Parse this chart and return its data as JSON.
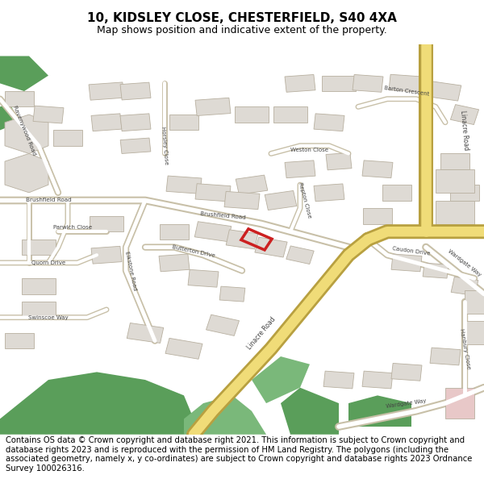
{
  "title_line1": "10, KIDSLEY CLOSE, CHESTERFIELD, S40 4XA",
  "title_line2": "Map shows position and indicative extent of the property.",
  "copyright_text": "Contains OS data © Crown copyright and database right 2021. This information is subject to Crown copyright and database rights 2023 and is reproduced with the permission of HM Land Registry. The polygons (including the associated geometry, namely x, y co-ordinates) are subject to Crown copyright and database rights 2023 Ordnance Survey 100026316.",
  "fig_width": 6.0,
  "fig_height": 6.25,
  "dpi": 100,
  "title_fontsize": 11,
  "subtitle_fontsize": 9,
  "copyright_fontsize": 7.2,
  "map_bg_color": "#f0ede8",
  "road_color_major": "#f0dc78",
  "road_color_minor": "#ffffff",
  "road_outline": "#c8c0a8",
  "building_fill": "#dedad4",
  "building_outline": "#b8b0a0",
  "green_dark": "#5a9e5a",
  "green_light": "#7ab87a",
  "red_area": "#e8c8c8",
  "highlight_color": "#cc2020",
  "text_color": "#000000",
  "label_color": "#444444",
  "map_border_color": "#aaaaaa"
}
